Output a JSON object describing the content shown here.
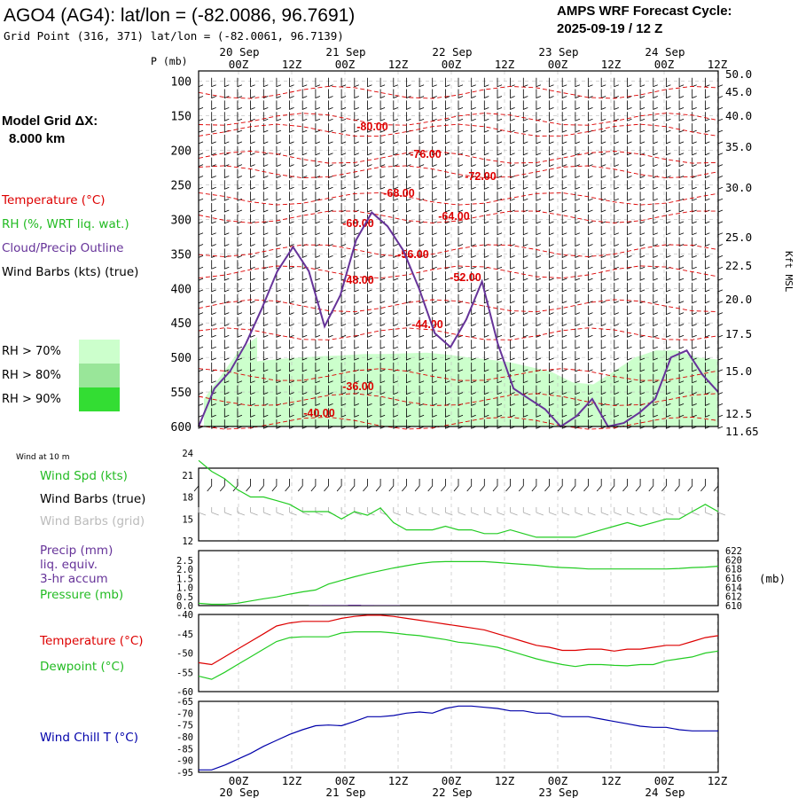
{
  "header": {
    "station_title": "AGO4 (AG4):  lat/lon = (-82.0086, 96.7691)",
    "grid_point": "Grid Point (316, 371) lat/lon = (-82.0061, 96.7139)",
    "cycle_title": "AMPS WRF Forecast Cycle:",
    "cycle_value": "2025-09-19 / 12  Z"
  },
  "left_legend": {
    "model_grid_line1": "Model Grid ΔX:",
    "model_grid_line2": "8.000 km",
    "temperature": "Temperature (°C)",
    "rh": "RH (%, WRT liq. wat.)",
    "cloud": "Cloud/Precip Outline",
    "wind_barbs": "Wind Barbs (kts) (true)",
    "rh_70": "RH > 70%",
    "rh_80": "RH > 80%",
    "rh_90": "RH > 90%"
  },
  "colors": {
    "temperature": "#dd0000",
    "rh_70": "#ccffcc",
    "rh_80": "#99e699",
    "rh_90": "#33dd33",
    "cloud": "#663399",
    "wind_spd": "#22cc22",
    "grid_barbs": "#aaaaaa",
    "precip": "#663399",
    "pressure": "#22cc22",
    "dewpoint": "#22cc22",
    "wind_chill": "#0000aa",
    "grid": "#bbbbbb"
  },
  "time_axis": {
    "tick_labels": [
      "00Z",
      "12Z",
      "00Z",
      "12Z",
      "00Z",
      "12Z",
      "00Z",
      "12Z",
      "00Z",
      "12Z"
    ],
    "date_labels": [
      "20 Sep",
      "21 Sep",
      "22 Sep",
      "23 Sep",
      "24 Sep"
    ]
  },
  "chart_data": [
    {
      "type": "heatmap",
      "panel": "vertical cross-section",
      "xlabel": "",
      "ylabel": "P (mb)",
      "right_axis_label": "Kft MSL",
      "y_pressure_ticks": [
        "100",
        "150",
        "200",
        "250",
        "300",
        "350",
        "400",
        "450",
        "500",
        "550",
        "600"
      ],
      "y_kft_ticks": [
        "50.0",
        "45.0",
        "40.0",
        "35.0",
        "30.0",
        "25.0",
        "22.5",
        "20.0",
        "17.5",
        "15.0",
        "12.5",
        "11.65"
      ],
      "ylim_mb": [
        600,
        85
      ],
      "temperature_contour_labels": [
        "-80.00",
        "-76.00",
        "-72.00",
        "-68.00",
        "-64.00",
        "-60.00",
        "-56.00",
        "-52.00",
        "-48.00",
        "-44.00",
        "-36.00",
        "-40.00"
      ],
      "rh_region_top_mb": [
        510,
        505,
        502,
        500,
        498,
        497,
        495,
        495,
        494,
        493,
        496,
        500,
        503,
        507,
        514,
        521,
        536,
        539,
        520,
        500,
        490,
        490,
        500,
        503
      ],
      "rh_region_bottom_mb": 600,
      "cloud_outline_mb": [
        600,
        545,
        520,
        480,
        430,
        375,
        340,
        375,
        455,
        410,
        330,
        290,
        310,
        345,
        400,
        465,
        485,
        445,
        390,
        480,
        545,
        560,
        575,
        600,
        585,
        560,
        600,
        595,
        580,
        560,
        500,
        490,
        525,
        550
      ]
    },
    {
      "type": "line",
      "panel": "Wind at 10 m",
      "series": [
        {
          "name": "Wind Spd (kts)",
          "color": "#22cc22",
          "values": [
            23,
            21.5,
            20.5,
            19,
            18,
            18,
            17.5,
            17,
            16,
            16,
            16,
            15,
            16,
            15.5,
            16.5,
            14.5,
            13.5,
            13.5,
            13.5,
            14,
            13.5,
            13.5,
            13,
            13,
            13.5,
            13,
            12.5,
            12.5,
            12.5,
            12.5,
            13,
            13.5,
            14,
            14.5,
            14,
            14.5,
            15,
            15,
            16,
            17,
            16
          ]
        },
        {
          "name": "Wind Barbs (true)",
          "color": "#000000"
        },
        {
          "name": "Wind Barbs (grid)",
          "color": "#aaaaaa"
        }
      ],
      "y_ticks": [
        "24",
        "21",
        "18",
        "15",
        "12"
      ],
      "ylim": [
        12,
        24
      ]
    },
    {
      "type": "line",
      "panel": "Precip / Pressure",
      "series": [
        {
          "name": "Precip (mm) liq. equiv. 3-hr accum",
          "color": "#663399",
          "values": [
            0,
            0,
            0,
            0,
            0,
            0,
            0,
            0,
            0,
            0.02,
            0.03,
            0.03,
            0.05,
            0.03,
            0.02,
            0.02,
            0,
            0,
            0,
            0,
            0,
            0,
            0,
            0,
            0,
            0,
            0,
            0,
            0,
            0,
            0,
            0,
            0,
            0,
            0,
            0,
            0,
            0,
            0,
            0,
            0
          ]
        },
        {
          "name": "Pressure (mb)",
          "color": "#22cc22",
          "values": [
            610.5,
            610.3,
            610.3,
            610.5,
            611,
            611.5,
            611.9,
            612.5,
            613,
            613.4,
            614.7,
            615.5,
            616.3,
            617,
            617.6,
            618.2,
            618.7,
            619.2,
            619.5,
            619.6,
            619.6,
            619.6,
            619.6,
            619.4,
            619.2,
            619,
            618.8,
            618.5,
            618.3,
            618.2,
            618,
            618,
            618,
            618,
            618,
            618,
            618,
            618.1,
            618.3,
            618.4,
            618.6
          ]
        }
      ],
      "y_left_ticks": [
        "2.5",
        "2.0",
        "1.5",
        "1.0",
        "0.5",
        "0.0"
      ],
      "y_right_ticks": [
        "622",
        "620",
        "618",
        "616",
        "614",
        "612",
        "610"
      ],
      "right_unit": "(mb)",
      "ylim_precip": [
        0,
        2.5
      ],
      "ylim_pressure": [
        610,
        622
      ]
    },
    {
      "type": "line",
      "panel": "Temperature / Dewpoint",
      "series": [
        {
          "name": "Temperature (°C)",
          "color": "#dd0000",
          "values": [
            -52.5,
            -53,
            -51,
            -49,
            -47,
            -45,
            -43,
            -42.2,
            -41.8,
            -41.8,
            -41.8,
            -41,
            -40.5,
            -40.2,
            -40.2,
            -40.5,
            -41,
            -41.5,
            -42,
            -42.5,
            -43,
            -43.5,
            -44,
            -45,
            -46,
            -47,
            -48,
            -48.5,
            -49.3,
            -49.3,
            -49,
            -49,
            -49.5,
            -49,
            -49,
            -48.5,
            -48,
            -48,
            -47,
            -46,
            -45.5
          ]
        },
        {
          "name": "Dewpoint (°C)",
          "color": "#22cc22",
          "values": [
            -56,
            -56.8,
            -55,
            -53,
            -51,
            -49,
            -47,
            -46,
            -45.8,
            -45.8,
            -45.8,
            -44.8,
            -44.5,
            -44.5,
            -44.5,
            -44.8,
            -45.2,
            -45.5,
            -46,
            -46.5,
            -47.2,
            -47.5,
            -48,
            -48.5,
            -49.5,
            -50.5,
            -51.5,
            -52.3,
            -53,
            -53.5,
            -53,
            -53,
            -53.2,
            -53.3,
            -53,
            -53,
            -52,
            -51.5,
            -51,
            -50,
            -49.5
          ]
        }
      ],
      "y_ticks": [
        "-40",
        "-45",
        "-50",
        "-55",
        "-60"
      ],
      "ylim": [
        -60,
        -40
      ]
    },
    {
      "type": "line",
      "panel": "Wind Chill",
      "series": [
        {
          "name": "Wind Chill T (°C)",
          "color": "#0000aa",
          "values": [
            -94,
            -94,
            -92,
            -89.5,
            -87,
            -84,
            -81.5,
            -79,
            -77,
            -75.3,
            -75,
            -75.3,
            -73.5,
            -71.5,
            -71.5,
            -71,
            -70,
            -69.5,
            -70,
            -68,
            -67,
            -67,
            -67.5,
            -68,
            -69,
            -69,
            -70,
            -70,
            -71.5,
            -71.5,
            -71.5,
            -72.5,
            -73.5,
            -74.5,
            -75.5,
            -76,
            -76,
            -77,
            -77.5,
            -77.5,
            -77.5
          ]
        }
      ],
      "y_ticks": [
        "-65",
        "-70",
        "-75",
        "-80",
        "-85",
        "-90",
        "-95"
      ],
      "ylim": [
        -95,
        -65
      ]
    }
  ],
  "lower_legend": {
    "wind_at_10m": "Wind at 10 m",
    "wind_spd": "Wind Spd (kts)",
    "wind_barbs_true": "Wind Barbs (true)",
    "wind_barbs_grid": "Wind Barbs (grid)",
    "precip_line1": "Precip (mm)",
    "precip_line2": "liq. equiv.",
    "precip_line3": "3-hr accum",
    "pressure": "Pressure (mb)",
    "temperature": "Temperature (°C)",
    "dewpoint": "Dewpoint (°C)",
    "wind_chill": "Wind Chill T (°C)"
  }
}
